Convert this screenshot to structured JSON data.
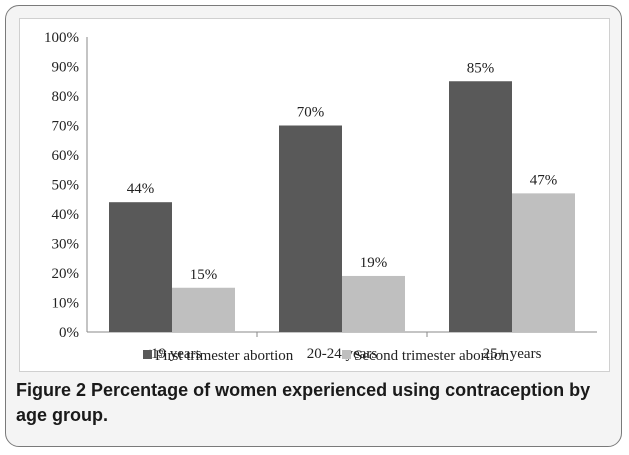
{
  "caption": {
    "label": "Figure 2",
    "text": "Percentage of women experienced using contraception by age group."
  },
  "chart_data": {
    "type": "bar",
    "categories": [
      "<19 years",
      "20-24 years",
      "25+ years"
    ],
    "series": [
      {
        "name": "First trimester abortion",
        "values": [
          44,
          70,
          85
        ],
        "labels": [
          "44%",
          "70%",
          "85%"
        ],
        "color": "#595959"
      },
      {
        "name": "Second trimester abortion",
        "values": [
          15,
          19,
          47
        ],
        "labels": [
          "15%",
          "19%",
          "47%"
        ],
        "color": "#bfbfbf"
      }
    ],
    "yticks": [
      "0%",
      "10%",
      "20%",
      "30%",
      "40%",
      "50%",
      "60%",
      "70%",
      "80%",
      "90%",
      "100%"
    ],
    "ylim": [
      0,
      100
    ],
    "grid": false,
    "legend_position": "bottom"
  }
}
